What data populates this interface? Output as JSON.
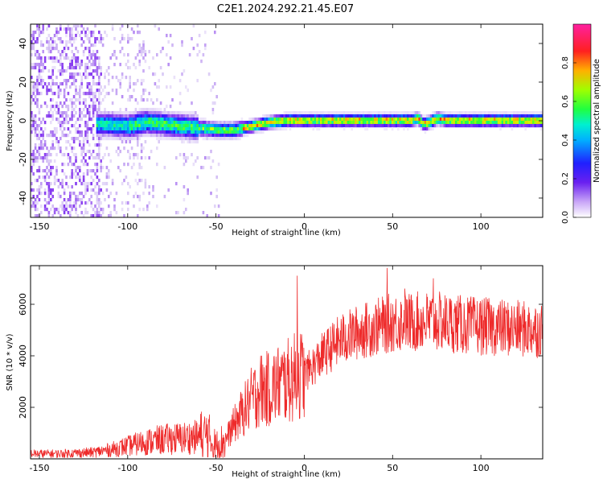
{
  "title": "C2E1.2024.292.21.45.E07",
  "colors": {
    "snr_line": "#ee2a2a",
    "background": "#ffffff",
    "colormap": [
      "#ffffff",
      "#d9c8f5",
      "#8a3df0",
      "#3010ff",
      "#00a8ff",
      "#00f0c0",
      "#30ff30",
      "#c8ff00",
      "#ffb000",
      "#ff2020",
      "#ff20a0"
    ]
  },
  "chart_data": [
    {
      "type": "heatmap",
      "title": "C2E1.2024.292.21.45.E07",
      "xlabel": "Height of straight line (km)",
      "ylabel": "Frequency (Hz)",
      "xlim": [
        -155,
        135
      ],
      "ylim": [
        -50,
        50
      ],
      "xticks": [
        "-150",
        "-100",
        "-50",
        "0",
        "50",
        "100"
      ],
      "xtick_values": [
        -150,
        -100,
        -50,
        0,
        50,
        100
      ],
      "yticks": [
        "40",
        "20",
        "0",
        "-20",
        "-40"
      ],
      "ytick_values": [
        40,
        20,
        0,
        -20,
        -40
      ],
      "colorbar": {
        "label": "Normalized spectral amplitude",
        "range": [
          0,
          1
        ],
        "ticks": [
          "0.0",
          "0.2",
          "0.4",
          "0.6",
          "0.8"
        ],
        "tick_values": [
          0.0,
          0.2,
          0.4,
          0.6,
          0.8
        ]
      },
      "ridge_frequency": {
        "x": [
          -115,
          -100,
          -90,
          -80,
          -70,
          -60,
          -50,
          -40,
          -35,
          -30,
          -25,
          -20,
          -10,
          0,
          10,
          20,
          30,
          40,
          50,
          60,
          64,
          67,
          70,
          75,
          80,
          90,
          100,
          110,
          120,
          130,
          135
        ],
        "y": [
          -1,
          -2,
          0,
          -1,
          -2,
          -3,
          -4,
          -4,
          -3,
          -2,
          -1,
          0,
          1,
          1,
          1,
          1,
          1,
          1,
          1,
          1,
          2,
          -1,
          0,
          2,
          1,
          1,
          1,
          1,
          1,
          1,
          1
        ]
      }
    },
    {
      "type": "line",
      "xlabel": "Height of straight line (km)",
      "ylabel": "SNR (10 * v/v)",
      "xlim": [
        -155,
        135
      ],
      "ylim": [
        0,
        7500
      ],
      "xticks": [
        "-150",
        "-100",
        "-50",
        "0",
        "50",
        "100"
      ],
      "xtick_values": [
        -150,
        -100,
        -50,
        0,
        50,
        100
      ],
      "yticks": [
        "6000",
        "4000",
        "2000"
      ],
      "ytick_values": [
        6000,
        4000,
        2000
      ],
      "envelope": {
        "x": [
          -155,
          -140,
          -120,
          -110,
          -100,
          -90,
          -80,
          -70,
          -60,
          -55,
          -50,
          -45,
          -40,
          -35,
          -30,
          -25,
          -20,
          -15,
          -10,
          -5,
          0,
          5,
          10,
          15,
          20,
          30,
          40,
          50,
          60,
          70,
          80,
          90,
          100,
          110,
          120,
          135
        ],
        "y": [
          200,
          200,
          250,
          350,
          500,
          650,
          750,
          800,
          850,
          900,
          500,
          700,
          1300,
          1800,
          2300,
          2700,
          2700,
          2900,
          3000,
          3200,
          3300,
          3600,
          4000,
          4300,
          4600,
          4900,
          5100,
          5300,
          5300,
          5350,
          5300,
          5200,
          5150,
          5100,
          5050,
          5000
        ]
      },
      "spikes": [
        {
          "x": -4,
          "y": 7100
        },
        {
          "x": 47,
          "y": 7400
        },
        {
          "x": 57,
          "y": 6600
        },
        {
          "x": 73,
          "y": 7000
        }
      ]
    }
  ]
}
